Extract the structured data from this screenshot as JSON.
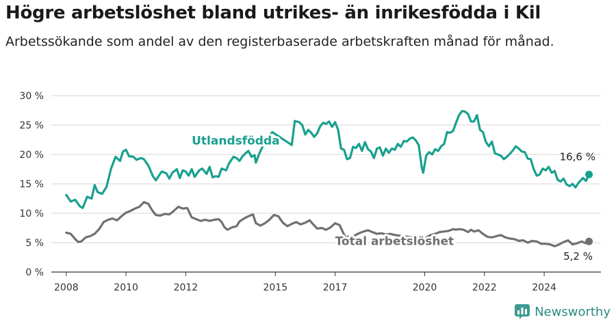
{
  "header": {
    "title": "Högre arbetslöshet bland utrikes- än inrikesfödda i Kil",
    "subtitle": "Arbetssökande som andel av den registerbaserade arbetskraften månad för månad."
  },
  "brand": {
    "name": "Newsworthy",
    "icon": "newsworthy-logo-icon"
  },
  "colors": {
    "utlandsfodda": "#18a08f",
    "total": "#707070",
    "grid": "#d6d6d6",
    "axis": "#333333"
  },
  "chart_data": {
    "type": "line",
    "title": "Högre arbetslöshet bland utrikes- än inrikesfödda i Kil",
    "subtitle": "Arbetssökande som andel av den registerbaserade arbetskraften månad för månad.",
    "xlabel": "",
    "ylabel": "",
    "x_ticks": [
      2008,
      2010,
      2012,
      2015,
      2017,
      2020,
      2022,
      2024
    ],
    "y_ticks": [
      0,
      5,
      10,
      15,
      20,
      25,
      30
    ],
    "y_tick_labels": [
      "0 %",
      "5 %",
      "10 %",
      "15 %",
      "20 %",
      "25 %",
      "30 %"
    ],
    "xlim": [
      2007.5,
      2025.9
    ],
    "ylim": [
      0,
      30
    ],
    "grid": "horizontal",
    "series": [
      {
        "name": "Utlandsfödda",
        "end_label": "16,6 %",
        "points": [
          [
            2008.0,
            13.1
          ],
          [
            2008.15,
            12.0
          ],
          [
            2008.3,
            12.3
          ],
          [
            2008.45,
            11.2
          ],
          [
            2008.55,
            10.9
          ],
          [
            2008.7,
            12.8
          ],
          [
            2008.85,
            12.5
          ],
          [
            2008.95,
            14.8
          ],
          [
            2009.05,
            13.6
          ],
          [
            2009.2,
            13.3
          ],
          [
            2009.35,
            14.5
          ],
          [
            2009.5,
            17.6
          ],
          [
            2009.65,
            19.6
          ],
          [
            2009.8,
            18.9
          ],
          [
            2009.9,
            20.5
          ],
          [
            2010.0,
            20.8
          ],
          [
            2010.1,
            19.7
          ],
          [
            2010.25,
            19.6
          ],
          [
            2010.35,
            19.1
          ],
          [
            2010.5,
            19.4
          ],
          [
            2010.6,
            19.2
          ],
          [
            2010.75,
            18.1
          ],
          [
            2010.9,
            16.3
          ],
          [
            2011.0,
            15.6
          ],
          [
            2011.1,
            16.4
          ],
          [
            2011.2,
            17.1
          ],
          [
            2011.35,
            16.8
          ],
          [
            2011.45,
            15.9
          ],
          [
            2011.55,
            16.9
          ],
          [
            2011.7,
            17.5
          ],
          [
            2011.8,
            16.0
          ],
          [
            2011.9,
            17.3
          ],
          [
            2012.0,
            17.1
          ],
          [
            2012.1,
            16.4
          ],
          [
            2012.2,
            17.5
          ],
          [
            2012.3,
            16.2
          ],
          [
            2012.45,
            17.3
          ],
          [
            2012.55,
            17.6
          ],
          [
            2012.7,
            16.7
          ],
          [
            2012.8,
            17.9
          ],
          [
            2012.9,
            16.1
          ],
          [
            2013.0,
            16.3
          ],
          [
            2013.1,
            16.2
          ],
          [
            2013.2,
            17.6
          ],
          [
            2013.35,
            17.3
          ],
          [
            2013.45,
            18.5
          ],
          [
            2013.6,
            19.6
          ],
          [
            2013.7,
            19.4
          ],
          [
            2013.8,
            18.9
          ],
          [
            2013.9,
            19.7
          ],
          [
            2014.0,
            20.2
          ],
          [
            2014.1,
            20.6
          ],
          [
            2014.2,
            19.6
          ],
          [
            2014.3,
            19.9
          ],
          [
            2014.35,
            18.6
          ],
          [
            2014.45,
            20.0
          ],
          [
            2014.6,
            21.7
          ],
          [
            2014.75,
            23.0
          ],
          [
            2014.9,
            23.8
          ],
          [
            2015.55,
            21.6
          ],
          [
            2015.65,
            25.7
          ],
          [
            2015.8,
            25.5
          ],
          [
            2015.9,
            25.0
          ],
          [
            2016.0,
            23.4
          ],
          [
            2016.1,
            24.2
          ],
          [
            2016.2,
            23.7
          ],
          [
            2016.3,
            23.0
          ],
          [
            2016.4,
            23.6
          ],
          [
            2016.5,
            24.8
          ],
          [
            2016.6,
            25.4
          ],
          [
            2016.7,
            25.2
          ],
          [
            2016.8,
            25.6
          ],
          [
            2016.9,
            24.7
          ],
          [
            2017.0,
            25.5
          ],
          [
            2017.1,
            24.2
          ],
          [
            2017.2,
            21.0
          ],
          [
            2017.3,
            20.8
          ],
          [
            2017.4,
            19.2
          ],
          [
            2017.5,
            19.4
          ],
          [
            2017.6,
            21.3
          ],
          [
            2017.7,
            21.1
          ],
          [
            2017.8,
            21.8
          ],
          [
            2017.9,
            20.6
          ],
          [
            2018.0,
            22.1
          ],
          [
            2018.1,
            20.9
          ],
          [
            2018.2,
            20.5
          ],
          [
            2018.3,
            19.4
          ],
          [
            2018.4,
            21.0
          ],
          [
            2018.5,
            21.2
          ],
          [
            2018.6,
            19.8
          ],
          [
            2018.7,
            21.0
          ],
          [
            2018.8,
            20.3
          ],
          [
            2018.9,
            21.0
          ],
          [
            2019.0,
            20.8
          ],
          [
            2019.1,
            21.8
          ],
          [
            2019.2,
            21.3
          ],
          [
            2019.3,
            22.3
          ],
          [
            2019.4,
            22.2
          ],
          [
            2019.5,
            22.7
          ],
          [
            2019.6,
            22.9
          ],
          [
            2019.7,
            22.4
          ],
          [
            2019.8,
            21.6
          ],
          [
            2019.9,
            17.8
          ],
          [
            2019.95,
            16.9
          ],
          [
            2020.05,
            19.8
          ],
          [
            2020.15,
            20.4
          ],
          [
            2020.25,
            20.0
          ],
          [
            2020.35,
            20.9
          ],
          [
            2020.45,
            20.6
          ],
          [
            2020.55,
            21.4
          ],
          [
            2020.65,
            21.8
          ],
          [
            2020.75,
            23.8
          ],
          [
            2020.85,
            23.7
          ],
          [
            2020.95,
            24.0
          ],
          [
            2021.05,
            25.4
          ],
          [
            2021.15,
            26.7
          ],
          [
            2021.25,
            27.4
          ],
          [
            2021.35,
            27.3
          ],
          [
            2021.45,
            26.9
          ],
          [
            2021.55,
            25.6
          ],
          [
            2021.65,
            25.6
          ],
          [
            2021.75,
            26.7
          ],
          [
            2021.85,
            24.2
          ],
          [
            2021.95,
            23.8
          ],
          [
            2022.05,
            22.1
          ],
          [
            2022.15,
            21.4
          ],
          [
            2022.25,
            22.2
          ],
          [
            2022.35,
            20.2
          ],
          [
            2022.45,
            20.0
          ],
          [
            2022.55,
            19.8
          ],
          [
            2022.65,
            19.2
          ],
          [
            2022.75,
            19.6
          ],
          [
            2022.85,
            20.1
          ],
          [
            2022.95,
            20.7
          ],
          [
            2023.05,
            21.4
          ],
          [
            2023.15,
            21.0
          ],
          [
            2023.25,
            20.5
          ],
          [
            2023.35,
            20.4
          ],
          [
            2023.45,
            19.3
          ],
          [
            2023.55,
            19.2
          ],
          [
            2023.65,
            17.5
          ],
          [
            2023.75,
            16.4
          ],
          [
            2023.85,
            16.6
          ],
          [
            2023.95,
            17.6
          ],
          [
            2024.05,
            17.3
          ],
          [
            2024.15,
            17.9
          ],
          [
            2024.25,
            16.9
          ],
          [
            2024.35,
            17.2
          ],
          [
            2024.45,
            15.7
          ],
          [
            2024.55,
            15.4
          ],
          [
            2024.65,
            15.9
          ],
          [
            2024.75,
            14.9
          ],
          [
            2024.85,
            14.6
          ],
          [
            2024.95,
            15.0
          ],
          [
            2025.05,
            14.4
          ],
          [
            2025.15,
            15.2
          ],
          [
            2025.3,
            16.0
          ],
          [
            2025.4,
            15.5
          ],
          [
            2025.5,
            16.6
          ]
        ]
      },
      {
        "name": "Total arbetslöshet",
        "end_label": "5,2 %",
        "points": [
          [
            2008.0,
            6.7
          ],
          [
            2008.15,
            6.5
          ],
          [
            2008.3,
            5.6
          ],
          [
            2008.4,
            5.1
          ],
          [
            2008.5,
            5.2
          ],
          [
            2008.65,
            5.9
          ],
          [
            2008.8,
            6.1
          ],
          [
            2008.95,
            6.5
          ],
          [
            2009.1,
            7.3
          ],
          [
            2009.25,
            8.5
          ],
          [
            2009.4,
            8.9
          ],
          [
            2009.55,
            9.1
          ],
          [
            2009.7,
            8.8
          ],
          [
            2009.85,
            9.5
          ],
          [
            2010.0,
            10.1
          ],
          [
            2010.15,
            10.4
          ],
          [
            2010.3,
            10.8
          ],
          [
            2010.45,
            11.1
          ],
          [
            2010.6,
            11.9
          ],
          [
            2010.75,
            11.6
          ],
          [
            2010.85,
            10.7
          ],
          [
            2011.0,
            9.7
          ],
          [
            2011.15,
            9.6
          ],
          [
            2011.3,
            9.9
          ],
          [
            2011.45,
            9.8
          ],
          [
            2011.6,
            10.4
          ],
          [
            2011.75,
            11.1
          ],
          [
            2011.9,
            10.8
          ],
          [
            2012.05,
            10.9
          ],
          [
            2012.2,
            9.3
          ],
          [
            2012.35,
            9.0
          ],
          [
            2012.5,
            8.7
          ],
          [
            2012.65,
            8.9
          ],
          [
            2012.8,
            8.7
          ],
          [
            2012.95,
            8.9
          ],
          [
            2013.1,
            9.0
          ],
          [
            2013.2,
            8.5
          ],
          [
            2013.3,
            7.6
          ],
          [
            2013.4,
            7.2
          ],
          [
            2013.55,
            7.6
          ],
          [
            2013.7,
            7.8
          ],
          [
            2013.8,
            8.6
          ],
          [
            2013.95,
            9.1
          ],
          [
            2014.1,
            9.5
          ],
          [
            2014.25,
            9.8
          ],
          [
            2014.35,
            8.3
          ],
          [
            2014.5,
            7.9
          ],
          [
            2014.65,
            8.3
          ],
          [
            2014.8,
            8.9
          ],
          [
            2014.95,
            9.7
          ],
          [
            2015.1,
            9.5
          ],
          [
            2015.25,
            8.4
          ],
          [
            2015.4,
            7.8
          ],
          [
            2015.55,
            8.2
          ],
          [
            2015.7,
            8.5
          ],
          [
            2015.85,
            8.1
          ],
          [
            2016.0,
            8.4
          ],
          [
            2016.15,
            8.8
          ],
          [
            2016.25,
            8.2
          ],
          [
            2016.4,
            7.4
          ],
          [
            2016.55,
            7.5
          ],
          [
            2016.7,
            7.2
          ],
          [
            2016.85,
            7.6
          ],
          [
            2017.0,
            8.3
          ],
          [
            2017.15,
            8.0
          ],
          [
            2017.25,
            6.9
          ],
          [
            2017.35,
            5.9
          ],
          [
            2017.5,
            6.1
          ],
          [
            2017.65,
            6.2
          ],
          [
            2017.8,
            6.6
          ],
          [
            2017.95,
            6.9
          ],
          [
            2018.1,
            7.1
          ],
          [
            2018.25,
            6.8
          ],
          [
            2018.4,
            6.5
          ],
          [
            2018.55,
            6.6
          ],
          [
            2018.7,
            6.4
          ],
          [
            2018.85,
            6.5
          ],
          [
            2019.0,
            6.3
          ],
          [
            2019.15,
            6.2
          ],
          [
            2019.3,
            6.1
          ],
          [
            2019.45,
            6.0
          ],
          [
            2019.6,
            5.9
          ],
          [
            2019.75,
            6.0
          ],
          [
            2019.9,
            5.8
          ],
          [
            2020.05,
            5.9
          ],
          [
            2020.2,
            6.3
          ],
          [
            2020.35,
            6.5
          ],
          [
            2020.5,
            6.8
          ],
          [
            2020.65,
            6.9
          ],
          [
            2020.8,
            7.0
          ],
          [
            2020.95,
            7.3
          ],
          [
            2021.05,
            7.2
          ],
          [
            2021.15,
            7.3
          ],
          [
            2021.3,
            7.2
          ],
          [
            2021.45,
            6.8
          ],
          [
            2021.55,
            7.2
          ],
          [
            2021.65,
            6.9
          ],
          [
            2021.8,
            7.1
          ],
          [
            2021.95,
            6.5
          ],
          [
            2022.1,
            6.0
          ],
          [
            2022.25,
            5.9
          ],
          [
            2022.4,
            6.1
          ],
          [
            2022.55,
            6.3
          ],
          [
            2022.7,
            5.9
          ],
          [
            2022.85,
            5.7
          ],
          [
            2023.0,
            5.6
          ],
          [
            2023.15,
            5.3
          ],
          [
            2023.3,
            5.4
          ],
          [
            2023.45,
            5.0
          ],
          [
            2023.6,
            5.3
          ],
          [
            2023.75,
            5.2
          ],
          [
            2023.9,
            4.8
          ],
          [
            2024.05,
            4.8
          ],
          [
            2024.2,
            4.7
          ],
          [
            2024.35,
            4.4
          ],
          [
            2024.5,
            4.7
          ],
          [
            2024.65,
            5.1
          ],
          [
            2024.8,
            5.4
          ],
          [
            2024.95,
            4.7
          ],
          [
            2025.1,
            4.9
          ],
          [
            2025.25,
            5.2
          ],
          [
            2025.4,
            4.9
          ],
          [
            2025.5,
            5.2
          ]
        ]
      }
    ]
  }
}
